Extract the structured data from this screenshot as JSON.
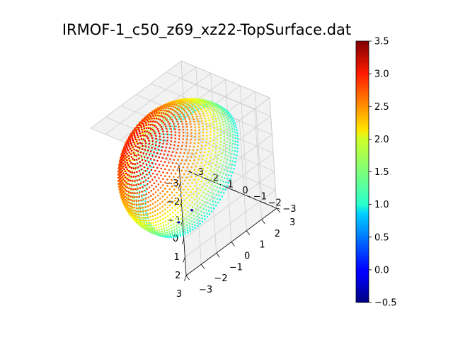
{
  "chart_data": {
    "type": "scatter",
    "projection": "3d",
    "title": "IRMOF-1_c50_z69_xz22-TopSurface.dat",
    "xlim": [
      -3,
      3
    ],
    "ylim": [
      -3,
      3
    ],
    "zlim": [
      -3,
      3
    ],
    "x_ticks": [
      "−3",
      "−2",
      "−1",
      "0",
      "1",
      "2",
      "3"
    ],
    "y_ticks": [
      "−3",
      "−2",
      "−1",
      "0",
      "1",
      "2",
      "3"
    ],
    "z_ticks": [
      "−3",
      "−2",
      "−1",
      "0",
      "1",
      "2",
      "3"
    ],
    "grid": true,
    "colormap": "jet",
    "colorbar": {
      "range": [
        -0.5,
        3.5
      ],
      "ticks": [
        "−0.5",
        "0.0",
        "0.5",
        "1.0",
        "1.5",
        "2.0",
        "2.5",
        "3.0",
        "3.5"
      ]
    },
    "surface": {
      "shape": "spherical cap (top surface of a ball)",
      "radius": 3.1,
      "value_range": [
        -0.3,
        3.1
      ]
    },
    "outlier_points": [
      {
        "x": 0.2,
        "y": -2.0,
        "z": -2.6,
        "value": -0.3
      },
      {
        "x": 0.0,
        "y": -2.2,
        "z": -2.8,
        "value": -0.3
      },
      {
        "x": 0.4,
        "y": -2.8,
        "z": -2.5,
        "value": -0.2
      }
    ]
  },
  "colors": {
    "pane": "#f2f2f2",
    "pane_edge": "#d6d6d6",
    "grid": "#cfcfcf",
    "axis": "#000000"
  }
}
